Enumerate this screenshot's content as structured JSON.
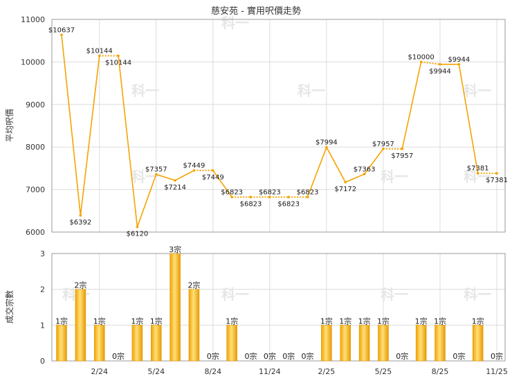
{
  "chart_data": [
    {
      "type": "line",
      "title": "慈安苑 - 實用呎價走勢",
      "ylabel": "平均呎價",
      "ylim": [
        6000,
        11000
      ],
      "yticks": [
        6000,
        7000,
        8000,
        9000,
        10000,
        11000
      ],
      "color": "#f5a300",
      "series": [
        {
          "values": [
            10637,
            6392,
            10144,
            10144,
            6120,
            7357,
            7214,
            7449,
            7449,
            6823,
            6823,
            6823,
            6823,
            6823,
            7994,
            7172,
            7363,
            7957,
            7957,
            10000,
            9944,
            9944,
            7381,
            7381
          ],
          "labels": [
            "$10637",
            "$6392",
            "$10144",
            "$10144",
            "$6120",
            "$7357",
            "$7214",
            "$7449",
            "$7449",
            "$6823",
            "$6823",
            "$6823",
            "$6823",
            "$6823",
            "$7994",
            "$7172",
            "$7363",
            "$7957",
            "$7957",
            "$10000",
            "$9944",
            "$9944",
            "$7381",
            "$7381"
          ],
          "dotted_after": [
            false,
            false,
            true,
            false,
            false,
            false,
            false,
            true,
            false,
            true,
            true,
            true,
            true,
            false,
            false,
            false,
            false,
            true,
            false,
            true,
            false,
            false,
            true,
            false
          ]
        }
      ]
    },
    {
      "type": "bar",
      "ylabel": "成交宗數",
      "ylim": [
        0,
        3
      ],
      "yticks": [
        0,
        1,
        2,
        3
      ],
      "xtick_labels": [
        "2/24",
        "5/24",
        "8/24",
        "11/24",
        "2/25",
        "5/25",
        "8/25",
        "11/25"
      ],
      "values": [
        1,
        2,
        1,
        0,
        1,
        1,
        3,
        2,
        0,
        1,
        0,
        0,
        0,
        0,
        1,
        1,
        1,
        1,
        0,
        1,
        1,
        0,
        1,
        0
      ],
      "labels": [
        "1宗",
        "2宗",
        "1宗",
        "0宗",
        "1宗",
        "1宗",
        "3宗",
        "2宗",
        "0宗",
        "1宗",
        "0宗",
        "0宗",
        "0宗",
        "0宗",
        "1宗",
        "1宗",
        "1宗",
        "1宗",
        "0宗",
        "1宗",
        "1宗",
        "0宗",
        "1宗",
        "0宗"
      ]
    }
  ],
  "watermark": "科一"
}
